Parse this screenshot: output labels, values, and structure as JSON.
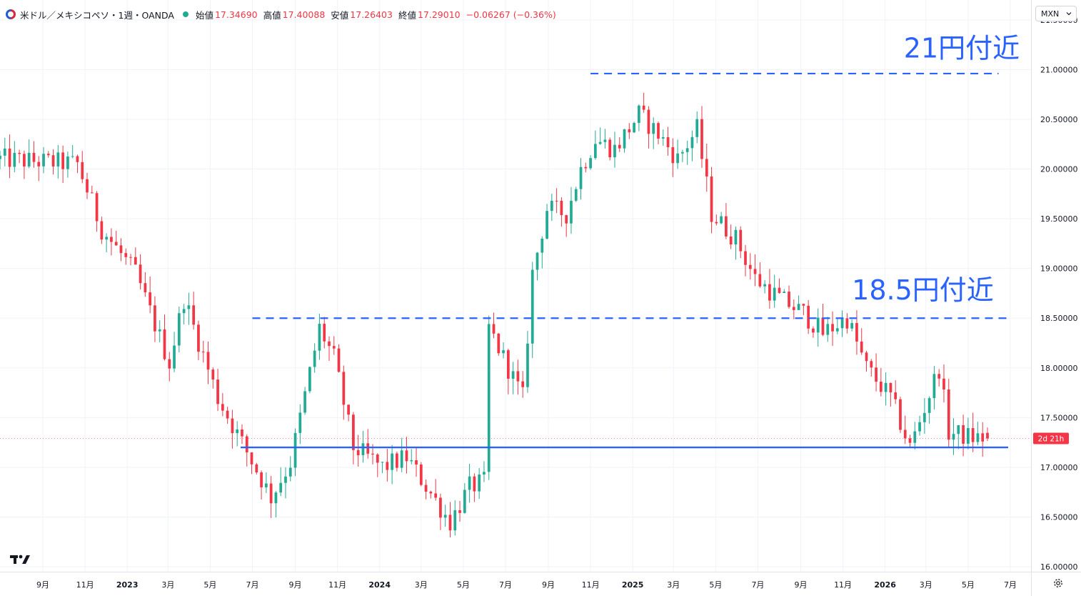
{
  "header": {
    "symbol": "米ドル／メキシコペソ・1週・OANDA",
    "open_label": "始値",
    "open": "17.34690",
    "high_label": "高値",
    "high": "17.40088",
    "low_label": "安値",
    "low": "17.26403",
    "close_label": "終値",
    "close": "17.29010",
    "change": "−0.06267 (−0.36%)"
  },
  "currency_selector": {
    "value": "MXN"
  },
  "icons": {
    "flag": "usd-mxn-flag-icon",
    "dropdown": "chevron-down-icon",
    "logo": "tradingview-logo-icon",
    "settings": "gear-icon"
  },
  "colors": {
    "up": "#22ab94",
    "down": "#f23645",
    "line": "#2962ff",
    "annotation_text": "#2962ff"
  },
  "chart_data": {
    "type": "candlestick",
    "y_axis": {
      "range": [
        15.95,
        21.7
      ],
      "ticks": [
        "21.50000",
        "21.00000",
        "20.50000",
        "20.00000",
        "19.50000",
        "19.00000",
        "18.50000",
        "18.00000",
        "17.50000",
        "17.00000",
        "16.50000",
        "16.00000"
      ]
    },
    "x_axis": {
      "range": [
        "2022-07-01",
        "2026-07-31"
      ],
      "ticks": [
        {
          "date": "2022-09-01",
          "label": "9月"
        },
        {
          "date": "2022-11-01",
          "label": "11月"
        },
        {
          "date": "2023-01-01",
          "label": "2023",
          "bold": true
        },
        {
          "date": "2023-03-01",
          "label": "3月"
        },
        {
          "date": "2023-05-01",
          "label": "5月"
        },
        {
          "date": "2023-07-01",
          "label": "7月"
        },
        {
          "date": "2023-09-01",
          "label": "9月"
        },
        {
          "date": "2023-11-01",
          "label": "11月"
        },
        {
          "date": "2024-01-01",
          "label": "2024",
          "bold": true
        },
        {
          "date": "2024-03-01",
          "label": "3月"
        },
        {
          "date": "2024-05-01",
          "label": "5月"
        },
        {
          "date": "2024-07-01",
          "label": "7月"
        },
        {
          "date": "2024-09-01",
          "label": "9月"
        },
        {
          "date": "2024-11-01",
          "label": "11月"
        },
        {
          "date": "2025-01-01",
          "label": "2025",
          "bold": true
        },
        {
          "date": "2025-03-01",
          "label": "3月"
        },
        {
          "date": "2025-05-01",
          "label": "5月"
        },
        {
          "date": "2025-07-01",
          "label": "7月"
        },
        {
          "date": "2025-09-01",
          "label": "9月"
        },
        {
          "date": "2025-11-01",
          "label": "11月"
        },
        {
          "date": "2026-01-01",
          "label": "2026",
          "bold": true
        },
        {
          "date": "2026-03-01",
          "label": "3月"
        },
        {
          "date": "2026-05-01",
          "label": "5月"
        },
        {
          "date": "2026-07-01",
          "label": "7月"
        }
      ]
    },
    "anchors": [
      {
        "date": "2022-10-21",
        "value": 20.05
      },
      {
        "date": "2022-11-25",
        "value": 19.4
      },
      {
        "date": "2023-01-13",
        "value": 18.95
      },
      {
        "date": "2023-03-03",
        "value": 18.05
      },
      {
        "date": "2023-03-24",
        "value": 18.7
      },
      {
        "date": "2023-05-12",
        "value": 17.7
      },
      {
        "date": "2023-07-28",
        "value": 16.7
      },
      {
        "date": "2023-08-25",
        "value": 17.05
      },
      {
        "date": "2023-10-06",
        "value": 18.4
      },
      {
        "date": "2023-10-27",
        "value": 18.1
      },
      {
        "date": "2023-11-24",
        "value": 17.2
      },
      {
        "date": "2024-01-05",
        "value": 17.0
      },
      {
        "date": "2024-02-09",
        "value": 17.1
      },
      {
        "date": "2024-04-12",
        "value": 16.45
      },
      {
        "date": "2024-05-10",
        "value": 16.8
      },
      {
        "date": "2024-05-31",
        "value": 16.85
      },
      {
        "date": "2024-06-07",
        "value": 18.4
      },
      {
        "date": "2024-06-28",
        "value": 18.1
      },
      {
        "date": "2024-07-26",
        "value": 17.7
      },
      {
        "date": "2024-08-09",
        "value": 18.95
      },
      {
        "date": "2024-08-30",
        "value": 19.6
      },
      {
        "date": "2024-09-27",
        "value": 19.55
      },
      {
        "date": "2024-10-18",
        "value": 20.0
      },
      {
        "date": "2024-11-08",
        "value": 20.3
      },
      {
        "date": "2024-12-06",
        "value": 20.2
      },
      {
        "date": "2025-01-10",
        "value": 20.55
      },
      {
        "date": "2025-02-07",
        "value": 20.35
      },
      {
        "date": "2025-03-07",
        "value": 20.1
      },
      {
        "date": "2025-04-04",
        "value": 20.4
      },
      {
        "date": "2025-04-25",
        "value": 19.55
      },
      {
        "date": "2025-05-30",
        "value": 19.3
      },
      {
        "date": "2025-06-27",
        "value": 18.9
      },
      {
        "date": "2025-08-01",
        "value": 18.7
      },
      {
        "date": "2025-09-05",
        "value": 18.55
      },
      {
        "date": "2025-10-03",
        "value": 18.35
      },
      {
        "date": "2025-11-07",
        "value": 18.5
      },
      {
        "date": "2025-12-05",
        "value": 18.0
      },
      {
        "date": "2026-01-09",
        "value": 17.7
      },
      {
        "date": "2026-02-06",
        "value": 17.2
      },
      {
        "date": "2026-02-27",
        "value": 17.6
      },
      {
        "date": "2026-03-20",
        "value": 18.0
      },
      {
        "date": "2026-04-03",
        "value": 17.35
      },
      {
        "date": "2026-05-08",
        "value": 17.3
      },
      {
        "date": "2026-05-29",
        "value": 17.29
      }
    ],
    "lines": [
      {
        "style": "dashed",
        "value": 20.96,
        "from": "2024-11-01",
        "to": "2026-06-14"
      },
      {
        "style": "dashed",
        "value": 18.5,
        "from": "2023-07-01",
        "to": "2026-06-28"
      },
      {
        "style": "solid",
        "value": 17.2,
        "from": "2023-06-14",
        "to": "2026-06-28"
      }
    ],
    "annotations": [
      {
        "text": "21円付近",
        "date": "2026-01-28",
        "value": 21.12
      },
      {
        "text": "18.5円付近",
        "date": "2025-11-14",
        "value": 18.69
      }
    ],
    "countdown_label": "2d 21h"
  }
}
